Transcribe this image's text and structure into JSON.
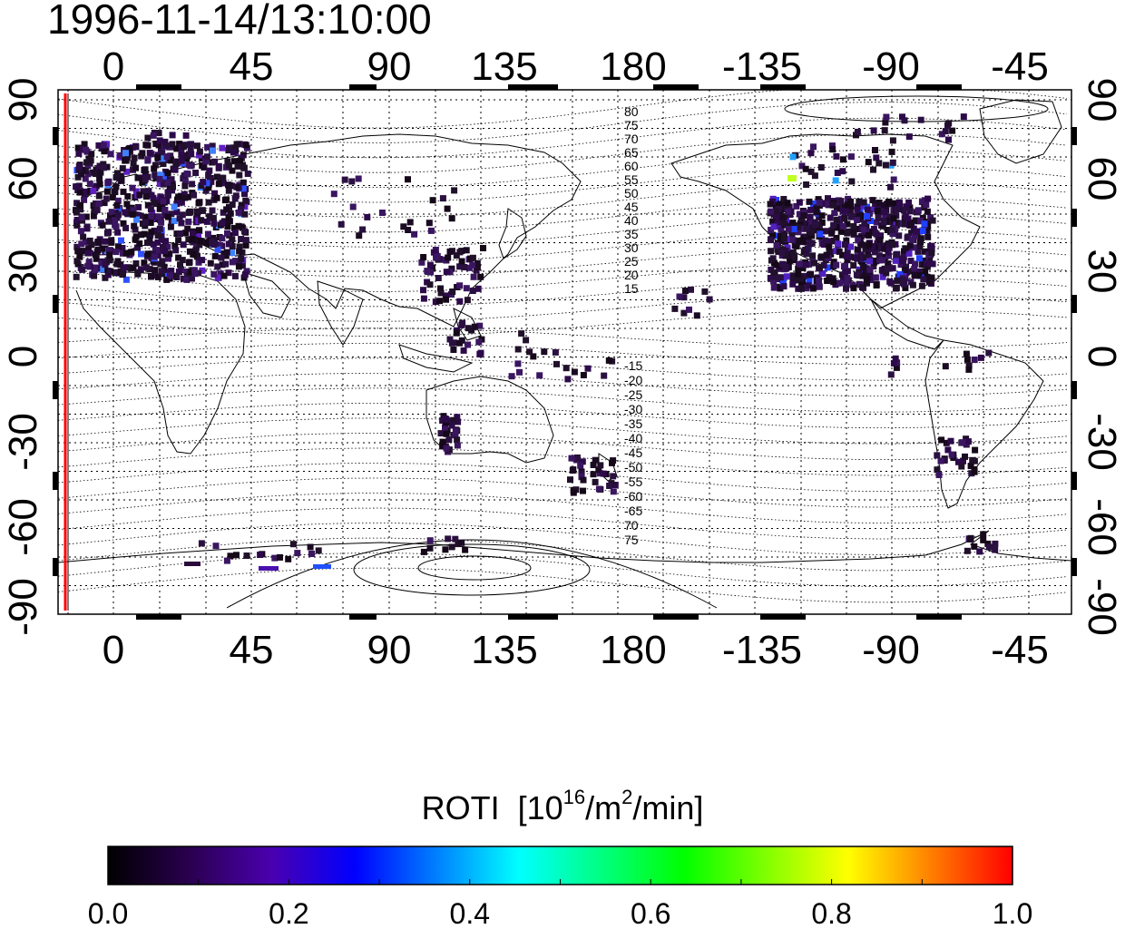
{
  "timestamp": "1996-11-14/13:10:00",
  "map": {
    "top_lon_labels": [
      "0",
      "45",
      "90",
      "135",
      "180",
      "-135",
      "-90",
      "-45"
    ],
    "bottom_lon_labels": [
      "0",
      "45",
      "90",
      "135",
      "180",
      "-135",
      "-90",
      "-45"
    ],
    "lat_labels": [
      "90",
      "60",
      "30",
      "0",
      "-30",
      "-60",
      "-90"
    ],
    "contour_labels_north": [
      "80",
      "75",
      "70",
      "65",
      "60",
      "55",
      "50",
      "45",
      "40",
      "35",
      "30",
      "25",
      "20",
      "15"
    ],
    "contour_labels_south": [
      "-15",
      "-20",
      "-25",
      "-30",
      "-35",
      "-40",
      "-45",
      "-50",
      "-55",
      "-60",
      "-65",
      "70",
      "75"
    ],
    "terminator_color": "#ff0000"
  },
  "colorbar": {
    "title": "ROTI",
    "unit_open": "[10",
    "unit_sup1": "16",
    "unit_mid": "/m",
    "unit_sup2": "2",
    "unit_close": "/min]",
    "tick_labels": [
      "0.0",
      "0.2",
      "0.4",
      "0.6",
      "0.8",
      "1.0"
    ],
    "colors": [
      "#000000",
      "#2a0050",
      "#4a00b0",
      "#0000ff",
      "#0080ff",
      "#00ffff",
      "#00ff80",
      "#00ff00",
      "#80ff00",
      "#ffff00",
      "#ff8000",
      "#ff0000"
    ]
  }
}
